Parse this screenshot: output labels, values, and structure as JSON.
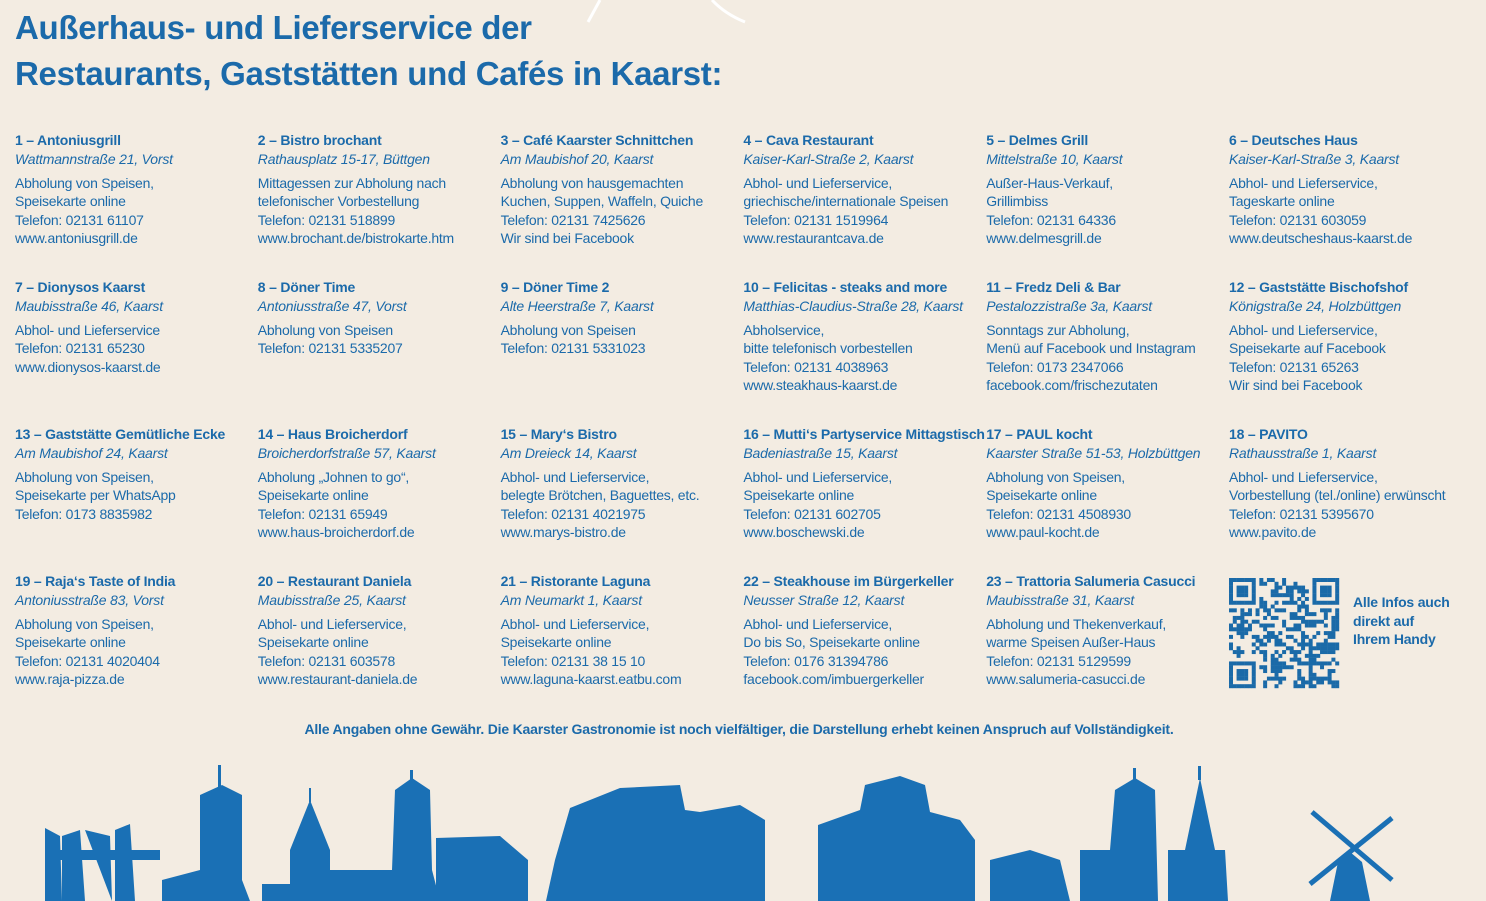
{
  "header": {
    "title_lines": [
      "Außerhaus- und Lieferservice der",
      "Restaurants, Gaststätten und Cafés in Kaarst:"
    ]
  },
  "entries": [
    {
      "name": "1 – Antoniusgrill",
      "address": "Wattmannstraße 21, Vorst",
      "lines": [
        "Abholung von Speisen,",
        "Speisekarte online",
        "Telefon: 02131 61107",
        "www.antoniusgrill.de"
      ]
    },
    {
      "name": "2 – Bistro brochant",
      "address": "Rathausplatz 15-17, Büttgen",
      "lines": [
        "Mittagessen zur Abholung nach",
        "telefonischer Vorbestellung",
        "Telefon: 02131 518899",
        "www.brochant.de/bistrokarte.htm"
      ]
    },
    {
      "name": "3 – Café Kaarster Schnittchen",
      "address": "Am Maubishof 20, Kaarst",
      "lines": [
        "Abholung von hausgemachten",
        "Kuchen, Suppen, Waffeln, Quiche",
        "Telefon: 02131 7425626",
        "Wir sind bei Facebook"
      ]
    },
    {
      "name": "4 – Cava Restaurant",
      "address": "Kaiser-Karl-Straße 2, Kaarst",
      "lines": [
        "Abhol- und Lieferservice,",
        "griechische/internationale Speisen",
        "Telefon: 02131 1519964",
        "www.restaurantcava.de"
      ]
    },
    {
      "name": "5 – Delmes Grill",
      "address": "Mittelstraße 10, Kaarst",
      "lines": [
        "Außer-Haus-Verkauf,",
        "Grillimbiss",
        "Telefon: 02131 64336",
        "www.delmesgrill.de"
      ]
    },
    {
      "name": "6 – Deutsches Haus",
      "address": "Kaiser-Karl-Straße 3, Kaarst",
      "lines": [
        "Abhol- und Lieferservice,",
        "Tageskarte online",
        "Telefon: 02131 603059",
        "www.deutscheshaus-kaarst.de"
      ]
    },
    {
      "name": "7 – Dionysos Kaarst",
      "address": "Maubisstraße 46, Kaarst",
      "lines": [
        "Abhol- und Lieferservice",
        "Telefon: 02131 65230",
        "www.dionysos-kaarst.de"
      ]
    },
    {
      "name": "8 – Döner Time",
      "address": "Antoniusstraße 47, Vorst",
      "lines": [
        "Abholung von Speisen",
        "Telefon: 02131 5335207"
      ]
    },
    {
      "name": "9 – Döner Time 2",
      "address": "Alte Heerstraße 7, Kaarst",
      "lines": [
        "Abholung von Speisen",
        "Telefon: 02131 5331023"
      ]
    },
    {
      "name": "10 – Felicitas - steaks and more",
      "address": "Matthias-Claudius-Straße 28, Kaarst",
      "lines": [
        "Abholservice,",
        "bitte telefonisch vorbestellen",
        "Telefon: 02131 4038963",
        "www.steakhaus-kaarst.de"
      ]
    },
    {
      "name": "11 – Fredz Deli & Bar",
      "address": "Pestalozzistraße 3a, Kaarst",
      "lines": [
        "Sonntags zur Abholung,",
        "Menü auf Facebook und Instagram",
        "Telefon: 0173 2347066",
        "facebook.com/frischezutaten"
      ]
    },
    {
      "name": "12 – Gaststätte Bischofshof",
      "address": "Königstraße 24, Holzbüttgen",
      "lines": [
        "Abhol- und Lieferservice,",
        "Speisekarte auf Facebook",
        "Telefon: 02131 65263",
        "Wir sind bei Facebook"
      ]
    },
    {
      "name": "13 – Gaststätte Gemütliche Ecke",
      "address": "Am Maubishof 24, Kaarst",
      "lines": [
        "Abholung von Speisen,",
        "Speisekarte per WhatsApp",
        "Telefon: 0173 8835982"
      ]
    },
    {
      "name": "14 – Haus Broicherdorf",
      "address": "Broicherdorfstraße 57, Kaarst",
      "lines": [
        "Abholung „Johnen to go“,",
        "Speisekarte online",
        "Telefon: 02131 65949",
        "www.haus-broicherdorf.de"
      ]
    },
    {
      "name": "15 – Mary‘s Bistro",
      "address": "Am Dreieck 14, Kaarst",
      "lines": [
        "Abhol- und Lieferservice,",
        "belegte Brötchen, Baguettes, etc.",
        "Telefon: 02131 4021975",
        "www.marys-bistro.de"
      ]
    },
    {
      "name": "16 – Mutti‘s Partyservice Mittagstisch",
      "address": "Badeniastraße 15, Kaarst",
      "lines": [
        "Abhol- und Lieferservice,",
        "Speisekarte online",
        "Telefon: 02131 602705",
        "www.boschewski.de"
      ]
    },
    {
      "name": "17 – PAUL kocht",
      "address": "Kaarster Straße 51-53, Holzbüttgen",
      "lines": [
        "Abholung von Speisen,",
        "Speisekarte online",
        "Telefon: 02131 4508930",
        "www.paul-kocht.de"
      ]
    },
    {
      "name": "18 – PAVITO",
      "address": "Rathausstraße 1, Kaarst",
      "lines": [
        "Abhol- und Lieferservice,",
        "Vorbestellung (tel./online) erwünscht",
        "Telefon: 02131 5395670",
        "www.pavito.de"
      ]
    },
    {
      "name": "19 – Raja‘s Taste of India",
      "address": "Antoniusstraße 83, Vorst",
      "lines": [
        "Abholung von Speisen,",
        "Speisekarte online",
        "Telefon: 02131 4020404",
        "www.raja-pizza.de"
      ]
    },
    {
      "name": "20 – Restaurant Daniela",
      "address": "Maubisstraße 25, Kaarst",
      "lines": [
        "Abhol- und Lieferservice,",
        "Speisekarte online",
        "Telefon: 02131 603578",
        "www.restaurant-daniela.de"
      ]
    },
    {
      "name": "21 – Ristorante Laguna",
      "address": "Am Neumarkt 1, Kaarst",
      "lines": [
        "Abhol- und Lieferservice,",
        "Speisekarte online",
        "Telefon: 02131 38 15 10",
        "www.laguna-kaarst.eatbu.com"
      ]
    },
    {
      "name": "22 – Steakhouse im Bürgerkeller",
      "address": "Neusser Straße 12, Kaarst",
      "lines": [
        "Abhol- und Lieferservice,",
        "Do bis So, Speisekarte online",
        "Telefon: 0176 31394786",
        "facebook.com/imbuergerkeller"
      ]
    },
    {
      "name": "23 – Trattoria Salumeria Casucci",
      "address": "Maubisstraße 31, Kaarst",
      "lines": [
        "Abholung und Thekenverkauf,",
        "warme Speisen Außer-Haus",
        "Telefon: 02131 5129599",
        "www.salumeria-casucci.de"
      ]
    }
  ],
  "qr": {
    "caption_lines": [
      "Alle Infos auch",
      "direkt auf",
      "Ihrem Handy"
    ]
  },
  "footer": {
    "disclaimer": "Alle Angaben ohne Gewähr. Die Kaarster Gastronomie ist noch vielfältiger, die Darstellung erhebt keinen Anspruch auf Vollständigkeit."
  }
}
